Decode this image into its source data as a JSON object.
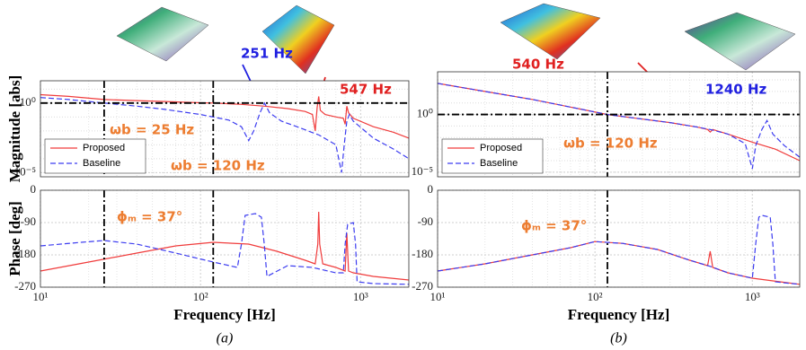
{
  "chart_data": [
    {
      "type": "line",
      "log_x": true,
      "log_y": true,
      "grid": true,
      "legend": "lower left",
      "ylabel": "Magnitude [abs]",
      "xlim": [
        10,
        2000
      ],
      "xticks": [
        10,
        100,
        1000
      ],
      "ylim": [
        5e-06,
        40
      ],
      "yticks": [
        {
          "value": 1,
          "label": "10⁰"
        },
        {
          "value": 1e-05,
          "label": "10⁻⁵"
        }
      ],
      "hline": 1,
      "vlines": [
        25,
        120
      ],
      "annotations": [
        {
          "text": "251 Hz",
          "color": "#2020e0"
        },
        {
          "text": "547 Hz",
          "color": "#e02020"
        },
        {
          "text": "ωb = 25 Hz",
          "color": "#ed7d31"
        },
        {
          "text": "ωb = 120 Hz",
          "color": "#ed7d31"
        }
      ],
      "series": [
        {
          "name": "Proposed",
          "color": "#f03c3c",
          "dash": false,
          "x": [
            10,
            15,
            25,
            40,
            60,
            100,
            120,
            180,
            251,
            350,
            450,
            500,
            520,
            535,
            547,
            560,
            600,
            700,
            780,
            800,
            820,
            840,
            900,
            1200,
            1600,
            2000
          ],
          "values": [
            4,
            3,
            1.8,
            1.5,
            1.3,
            1.05,
            1,
            0.8,
            0.6,
            0.4,
            0.25,
            0.15,
            0.01,
            0.5,
            3,
            0.3,
            0.15,
            0.1,
            0.08,
            0.03,
            0.6,
            0.2,
            0.08,
            0.02,
            0.008,
            0.003
          ]
        },
        {
          "name": "Baseline",
          "color": "#3c3cf0",
          "dash": true,
          "x": [
            10,
            15,
            25,
            40,
            60,
            100,
            150,
            180,
            200,
            215,
            235,
            251,
            270,
            320,
            400,
            550,
            700,
            760,
            790,
            820,
            850,
            900,
            1200,
            1600,
            2000
          ],
          "values": [
            2.5,
            1.8,
            1,
            0.6,
            0.35,
            0.15,
            0.06,
            0.02,
            0.002,
            0.01,
            0.2,
            1,
            0.2,
            0.05,
            0.02,
            0.005,
            0.001,
            1e-05,
            0.001,
            0.05,
            0.15,
            0.05,
            0.003,
            0.0005,
            0.0001
          ]
        }
      ]
    },
    {
      "type": "line",
      "log_x": true,
      "log_y": false,
      "grid": true,
      "ylabel": "Phase [deg]",
      "xlabel": "Frequency [Hz]",
      "panel_label": "(a)",
      "xlim": [
        10,
        2000
      ],
      "xticks": [
        {
          "value": 10,
          "label": "10¹"
        },
        {
          "value": 100,
          "label": "10²"
        },
        {
          "value": 1000,
          "label": "10³"
        }
      ],
      "ylim": [
        -270,
        0
      ],
      "yticks": [
        0,
        -90,
        -180,
        -270
      ],
      "vlines": [
        25,
        120
      ],
      "annotations": [
        {
          "text": "ϕₘ = 37°",
          "color": "#ed7d31"
        }
      ],
      "series": [
        {
          "name": "Proposed",
          "color": "#f03c3c",
          "dash": false,
          "x": [
            10,
            20,
            40,
            70,
            120,
            200,
            300,
            450,
            520,
            540,
            547,
            555,
            580,
            700,
            800,
            820,
            840,
            900,
            1200,
            2000
          ],
          "values": [
            -225,
            -200,
            -175,
            -155,
            -145,
            -150,
            -170,
            -195,
            -205,
            -150,
            -60,
            -150,
            -205,
            -215,
            -225,
            -120,
            -225,
            -230,
            -240,
            -250
          ]
        },
        {
          "name": "Baseline",
          "color": "#3c3cf0",
          "dash": true,
          "x": [
            10,
            18,
            25,
            40,
            70,
            120,
            170,
            180,
            190,
            220,
            240,
            250,
            260,
            350,
            500,
            700,
            780,
            800,
            830,
            900,
            930,
            950,
            1200,
            2000
          ],
          "values": [
            -155,
            -145,
            -140,
            -150,
            -175,
            -200,
            -215,
            -150,
            -70,
            -65,
            -75,
            -150,
            -240,
            -210,
            -215,
            -230,
            -230,
            -150,
            -95,
            -90,
            -150,
            -255,
            -260,
            -262
          ]
        }
      ]
    },
    {
      "type": "line",
      "log_x": true,
      "log_y": true,
      "grid": true,
      "legend": "lower left",
      "xlim": [
        10,
        2000
      ],
      "xticks": [
        10,
        100,
        1000
      ],
      "ylim": [
        4e-06,
        5000
      ],
      "yticks": [
        {
          "value": 1,
          "label": "10⁰"
        },
        {
          "value": 1e-05,
          "label": "10⁻⁵"
        }
      ],
      "hline": 1,
      "vlines": [
        120
      ],
      "annotations": [
        {
          "text": "540 Hz",
          "color": "#e02020"
        },
        {
          "text": "1240 Hz",
          "color": "#2020e0"
        },
        {
          "text": "ωb = 120 Hz",
          "color": "#ed7d31"
        }
      ],
      "series": [
        {
          "name": "Proposed",
          "color": "#f03c3c",
          "dash": false,
          "x": [
            10,
            20,
            40,
            80,
            120,
            200,
            300,
            450,
            520,
            540,
            560,
            700,
            1000,
            1400,
            2000
          ],
          "values": [
            500,
            100,
            20,
            3,
            1,
            0.4,
            0.2,
            0.08,
            0.05,
            0.03,
            0.05,
            0.02,
            0.004,
            0.001,
            0.0001
          ]
        },
        {
          "name": "Baseline",
          "color": "#3c3cf0",
          "dash": true,
          "x": [
            10,
            20,
            40,
            80,
            120,
            200,
            300,
            450,
            540,
            700,
            900,
            1000,
            1050,
            1150,
            1240,
            1350,
            1600,
            2000
          ],
          "values": [
            500,
            100,
            20,
            3,
            1,
            0.4,
            0.2,
            0.08,
            0.05,
            0.02,
            0.003,
            2e-05,
            0.002,
            0.05,
            0.3,
            0.02,
            0.002,
            0.0002
          ]
        }
      ]
    },
    {
      "type": "line",
      "log_x": true,
      "log_y": false,
      "grid": true,
      "xlabel": "Frequency [Hz]",
      "panel_label": "(b)",
      "xlim": [
        10,
        2000
      ],
      "xticks": [
        {
          "value": 10,
          "label": "10¹"
        },
        {
          "value": 100,
          "label": "10²"
        },
        {
          "value": 1000,
          "label": "10³"
        }
      ],
      "ylim": [
        -270,
        0
      ],
      "yticks": [
        0,
        -90,
        -180,
        -270
      ],
      "vlines": [
        120
      ],
      "annotations": [
        {
          "text": "ϕₘ = 37°",
          "color": "#ed7d31"
        }
      ],
      "series": [
        {
          "name": "Proposed",
          "color": "#f03c3c",
          "dash": false,
          "x": [
            10,
            20,
            40,
            70,
            100,
            150,
            250,
            400,
            520,
            540,
            560,
            700,
            1000,
            1500,
            2000
          ],
          "values": [
            -225,
            -205,
            -180,
            -160,
            -143,
            -148,
            -165,
            -195,
            -210,
            -170,
            -215,
            -230,
            -245,
            -255,
            -262
          ]
        },
        {
          "name": "Baseline",
          "color": "#3c3cf0",
          "dash": true,
          "x": [
            10,
            20,
            40,
            70,
            100,
            150,
            250,
            400,
            540,
            700,
            1000,
            1050,
            1100,
            1150,
            1300,
            1350,
            1400,
            1600,
            2000
          ],
          "values": [
            -225,
            -205,
            -180,
            -160,
            -143,
            -148,
            -165,
            -195,
            -212,
            -230,
            -245,
            -150,
            -75,
            -70,
            -75,
            -150,
            -255,
            -258,
            -262
          ]
        }
      ]
    }
  ]
}
